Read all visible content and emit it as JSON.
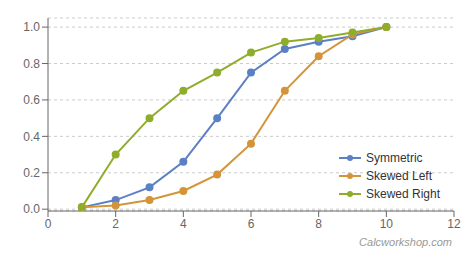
{
  "chart_data": {
    "type": "line",
    "x": [
      1,
      2,
      3,
      4,
      5,
      6,
      7,
      8,
      9,
      10
    ],
    "series": [
      {
        "name": "Symmetric",
        "color": "#5b80c4",
        "values": [
          0.01,
          0.05,
          0.12,
          0.26,
          0.5,
          0.75,
          0.88,
          0.92,
          0.95,
          1.0
        ]
      },
      {
        "name": "Skewed Left",
        "color": "#d4943a",
        "values": [
          0.01,
          0.02,
          0.05,
          0.1,
          0.19,
          0.36,
          0.65,
          0.84,
          0.96,
          1.0
        ]
      },
      {
        "name": "Skewed Right",
        "color": "#8fad2b",
        "values": [
          0.01,
          0.3,
          0.5,
          0.65,
          0.75,
          0.86,
          0.92,
          0.94,
          0.97,
          1.0
        ]
      }
    ],
    "xlim": [
      0,
      12
    ],
    "ylim": [
      -0.01,
      1.05
    ],
    "xticks": [
      0,
      2,
      4,
      6,
      8,
      10,
      12
    ],
    "yticks": [
      {
        "value": 0.0,
        "label": "0.0"
      },
      0.2,
      0.4,
      0.6,
      0.8,
      {
        "value": 1.0,
        "label": "1.0"
      }
    ],
    "grid": "y",
    "legend": "lower right",
    "marker": "circle",
    "annotations": [
      "Calcworkshop.com"
    ]
  }
}
